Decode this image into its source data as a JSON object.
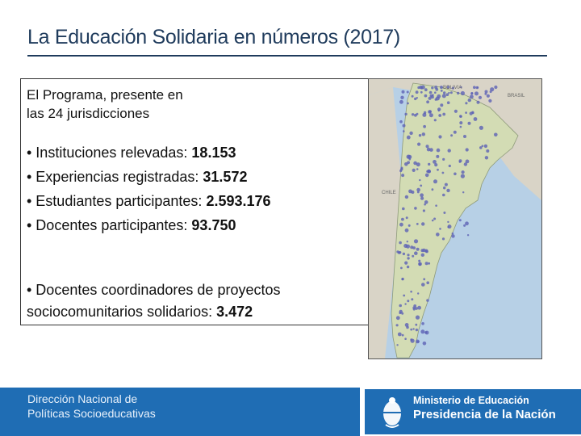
{
  "header": {
    "title": "La Educación Solidaria en números (2017)"
  },
  "content": {
    "intro_line1": "El Programa, presente en",
    "intro_line2": "las 24 jurisdicciones",
    "stats": [
      {
        "label": "• Instituciones relevadas: ",
        "value": "18.153"
      },
      {
        "label": "• Experiencias registradas: ",
        "value": "31.572"
      },
      {
        "label": "• Estudiantes participantes: ",
        "value": "2.593.176"
      },
      {
        "label": "• Docentes participantes: ",
        "value": "93.750"
      }
    ],
    "coordinators_line1": "• Docentes coordinadores de proyectos",
    "coordinators_label": "sociocomunitarios solidarios: ",
    "coordinators_value": "3.472"
  },
  "map": {
    "labels": {
      "brasil": "BRASIL",
      "chile": "CHILE",
      "bolivia": "BOLIVIA"
    },
    "colors": {
      "land": "#d3dcb4",
      "ocean": "#b7d0e6",
      "dots": "#5d62b5",
      "neighbors": "#d9d4c7"
    }
  },
  "footer": {
    "left_line1": "Dirección Nacional de",
    "left_line2": "Políticas Socioeducativas",
    "ministerio": "Ministerio de Educación",
    "presidencia": "Presidencia de la Nación",
    "brand_color": "#1f6db4"
  }
}
